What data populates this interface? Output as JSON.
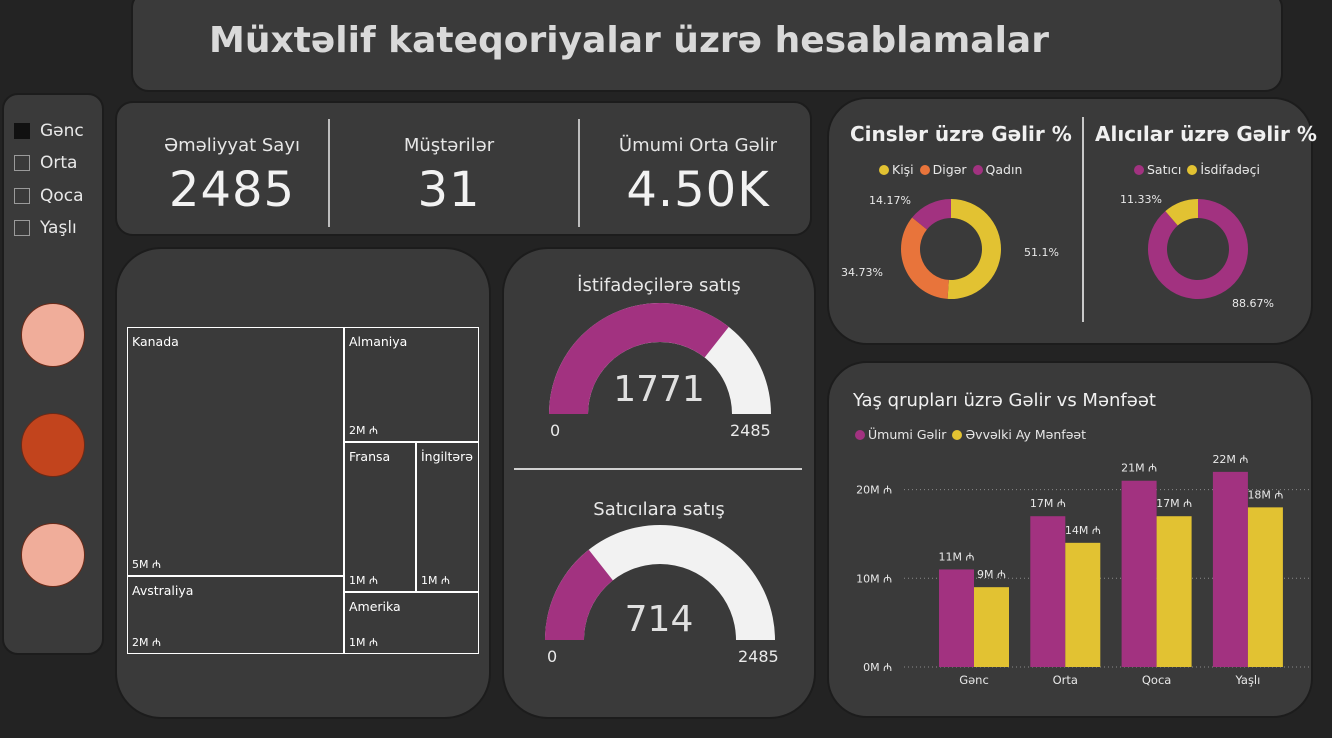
{
  "header": {
    "title": "Müxtəlif kateqoriyalar üzrə hesablamalar"
  },
  "slicer": {
    "items": [
      {
        "label": "Gənc",
        "checked": true
      },
      {
        "label": "Orta",
        "checked": false
      },
      {
        "label": "Qoca",
        "checked": false
      },
      {
        "label": "Yaşlı",
        "checked": false
      }
    ]
  },
  "buttons": {
    "colors": [
      "#f0ad9a",
      "#c2441d",
      "#f0ad9a"
    ]
  },
  "kpis": [
    {
      "label": "Əməliyyat Sayı",
      "value": "2485"
    },
    {
      "label": "Müştərilər",
      "value": "31"
    },
    {
      "label": "Ümumi Orta Gəlir",
      "value": "4.50K"
    }
  ],
  "treemap": {
    "cells": [
      {
        "name": "Kanada",
        "value": "5M ₼",
        "color": "#df6a72"
      },
      {
        "name": "Avstraliya",
        "value": "2M ₼",
        "color": "#e2c232"
      },
      {
        "name": "Almaniya",
        "value": "2M ₼",
        "color": "#8e6fcf"
      },
      {
        "name": "Fransa",
        "value": "1M ₼",
        "color": "#e98b5e"
      },
      {
        "name": "İngiltərə",
        "value": "1M ₼",
        "color": "#e363bb"
      },
      {
        "name": "Amerika",
        "value": "1M ₼",
        "color": "#3aa3ff"
      }
    ]
  },
  "gauges": [
    {
      "title": "İstifadəçilərə satış",
      "value": 1771,
      "value_label": "1771",
      "min": "0",
      "max": "2485",
      "fill_color": "#a23280",
      "track_color": "#f2f2f2"
    },
    {
      "title": "Satıcılara satış",
      "value": 714,
      "value_label": "714",
      "min": "0",
      "max": "2485",
      "fill_color": "#a23280",
      "track_color": "#f2f2f2"
    }
  ],
  "chart_data": [
    {
      "type": "pie",
      "title": "Cinslər üzrə Gəlir %",
      "legend": [
        "Kişi",
        "Digər",
        "Qadın"
      ],
      "slices": [
        {
          "name": "Kişi",
          "value": 51.1,
          "label": "51.1%",
          "color": "#e2c232"
        },
        {
          "name": "Digər",
          "value": 34.73,
          "label": "34.73%",
          "color": "#e8743b"
        },
        {
          "name": "Qadın",
          "value": 14.17,
          "label": "14.17%",
          "color": "#a23280"
        }
      ]
    },
    {
      "type": "pie",
      "title": "Alıcılar üzrə Gəlir %",
      "legend": [
        "Satıcı",
        "İsdifadəçi"
      ],
      "slices": [
        {
          "name": "Satıcı",
          "value": 88.67,
          "label": "88.67%",
          "color": "#a23280"
        },
        {
          "name": "İsdifadəçi",
          "value": 11.33,
          "label": "11.33%",
          "color": "#e2c232"
        }
      ]
    },
    {
      "type": "bar",
      "title": "Yaş qrupları üzrə Gəlir vs Mənfəət",
      "categories": [
        "Gənc",
        "Orta",
        "Qoca",
        "Yaşlı"
      ],
      "series": [
        {
          "name": "Ümumi Gəlir",
          "color": "#a23280",
          "values": [
            11,
            17,
            21,
            22
          ],
          "labels": [
            "11M ₼",
            "17M ₼",
            "21M ₼",
            "22M ₼"
          ]
        },
        {
          "name": "Əvvəlki Ay Mənfəət",
          "color": "#e2c232",
          "values": [
            9,
            14,
            17,
            18
          ],
          "labels": [
            "9M ₼",
            "14M ₼",
            "17M ₼",
            "18M ₼"
          ]
        }
      ],
      "yticks": [
        {
          "value": 0,
          "label": "0M ₼"
        },
        {
          "value": 10,
          "label": "10M ₼"
        },
        {
          "value": 20,
          "label": "20M ₼"
        }
      ],
      "ylim": [
        0,
        23
      ]
    }
  ]
}
